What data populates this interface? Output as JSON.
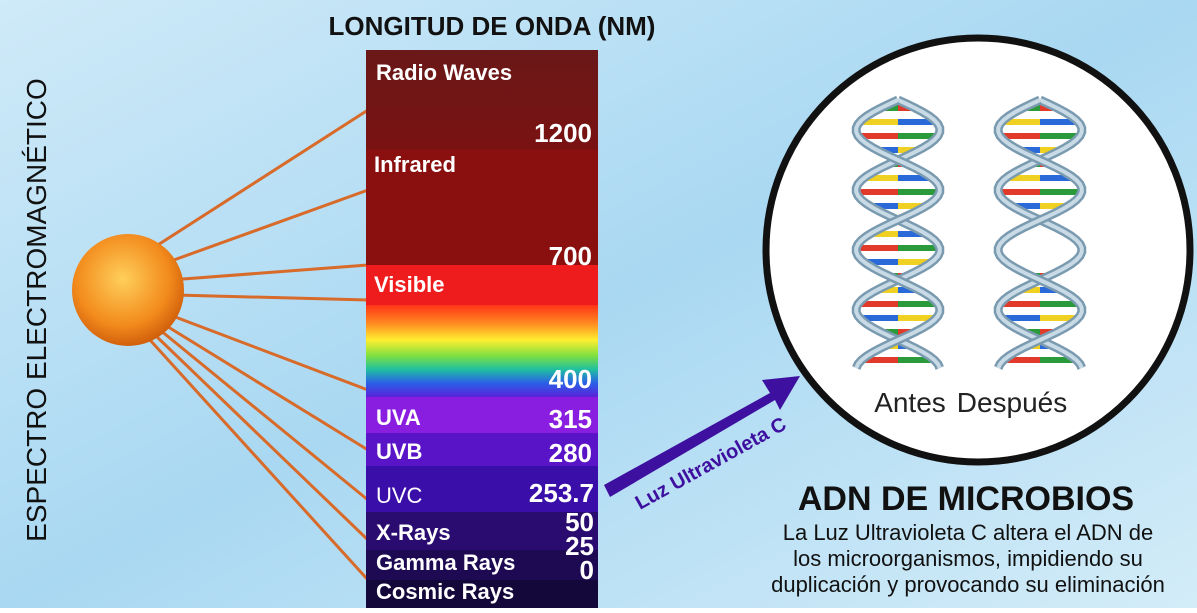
{
  "title": "LONGITUD DE ONDA  (NM)",
  "side_label": "ESPECTRO ELECTROMAGNÉTICO",
  "bands": [
    {
      "label": "Radio Waves",
      "wavelength": "1200"
    },
    {
      "label": "Infrared",
      "wavelength": "700"
    },
    {
      "label": "Visible",
      "wavelength": "400"
    },
    {
      "label": "UVA",
      "wavelength": "315"
    },
    {
      "label": "UVB",
      "wavelength": "280"
    },
    {
      "label": "UVC",
      "wavelength": "253.7"
    },
    {
      "label": "X-Rays",
      "wavelength": "50"
    },
    {
      "label": "Gamma Rays",
      "wavelength": "25"
    },
    {
      "label": "Cosmic Rays",
      "wavelength": "0"
    }
  ],
  "arrow_label": "Luz Ultravioleta C",
  "dna": {
    "before": "Antes",
    "after": "Después"
  },
  "heading": "ADN DE MICROBIOS",
  "description": [
    "La Luz Ultravioleta C altera el ADN de",
    "los microorganismos, impidiendo su",
    "duplicación y provocando su eliminación"
  ]
}
